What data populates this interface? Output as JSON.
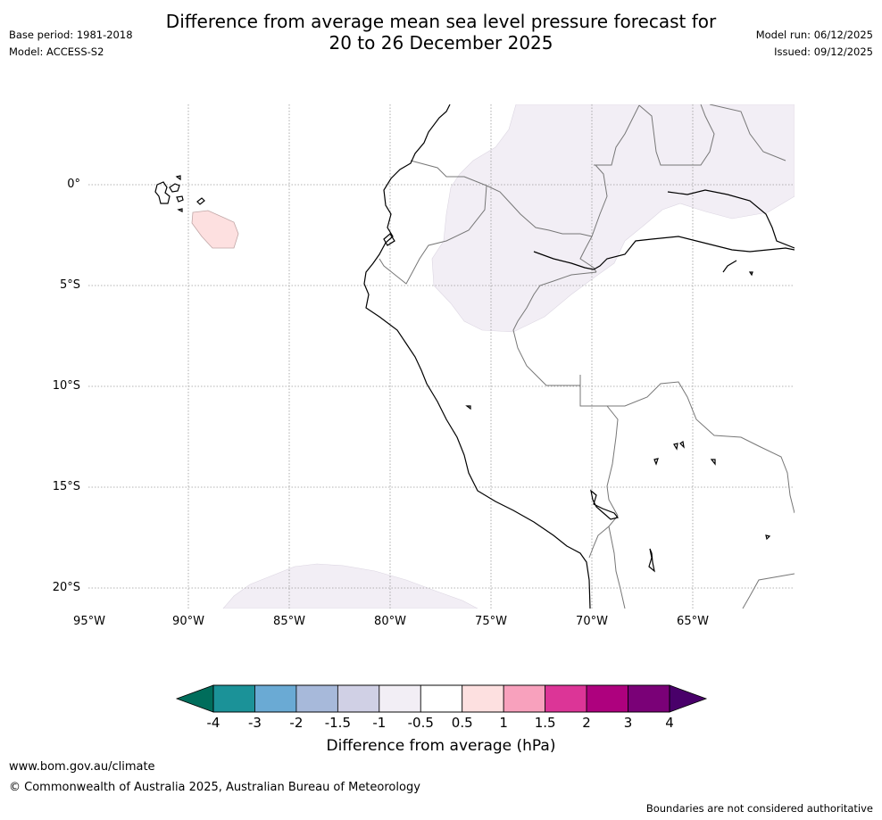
{
  "title": {
    "line1": "Difference from average mean sea level pressure forecast for",
    "line2": "20 to 26 December 2025"
  },
  "meta": {
    "base_period": "Base period: 1981-2018",
    "model": "Model: ACCESS-S2",
    "model_run": "Model run: 06/12/2025",
    "issued": "Issued: 09/12/2025"
  },
  "map": {
    "lat_labels": [
      "0°",
      "5°S",
      "10°S",
      "15°S",
      "20°S"
    ],
    "lon_labels": [
      "95°W",
      "90°W",
      "85°W",
      "80°W",
      "75°W",
      "70°W",
      "65°W"
    ],
    "anomaly_regions": [
      {
        "name": "amazon-region",
        "category": "-1 to -0.5",
        "color": "#f2eef5"
      },
      {
        "name": "south-pacific-region",
        "category": "-1 to -0.5",
        "color": "#f2eef5"
      },
      {
        "name": "galapagos-region",
        "category": "0.5 to 1",
        "color": "#fde0e0"
      }
    ]
  },
  "colorbar": {
    "ticks": [
      "-4",
      "-3",
      "-2",
      "-1.5",
      "-1",
      "-0.5",
      "0.5",
      "1",
      "1.5",
      "2",
      "3",
      "4"
    ],
    "colors": [
      "#1b9298",
      "#6aaad4",
      "#a7b9da",
      "#d0d0e5",
      "#f2eef5",
      "#ffffff",
      "#fde0e0",
      "#f8a1bd",
      "#dc3597",
      "#ae017e",
      "#7a0177"
    ],
    "low_extend_color": "#006d5b",
    "high_extend_color": "#49006a",
    "label": "Difference from average (hPa)"
  },
  "footer": {
    "url": "www.bom.gov.au/climate",
    "copyright": "© Commonwealth of Australia 2025, Australian Bureau of Meteorology",
    "disclaimer": "Boundaries are not considered authoritative"
  }
}
